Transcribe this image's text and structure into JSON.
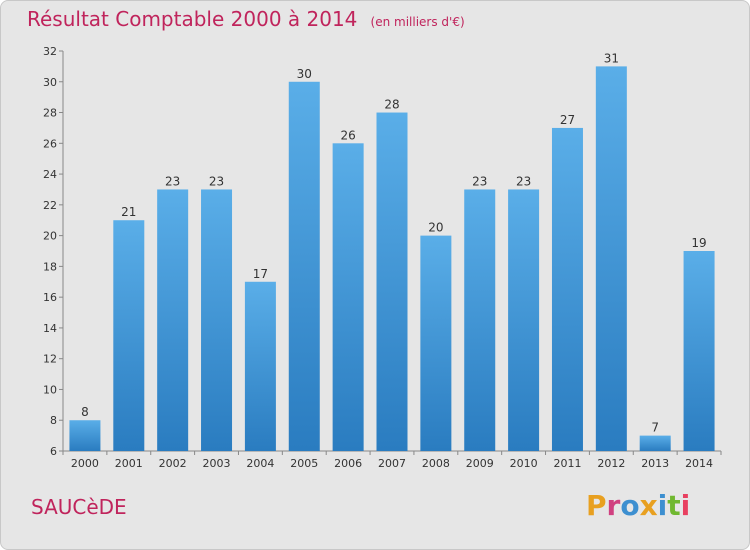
{
  "header": {
    "title": "Résultat Comptable 2000 à 2014",
    "subtitle": "(en milliers d'€)"
  },
  "footer": {
    "commune": "SAUCèDE",
    "logo_text": "Proxiti"
  },
  "colors": {
    "accent": "#c0245c",
    "bar_top": "#5aaee8",
    "bar_bottom": "#2a7cc0",
    "background": "#e6e6e6",
    "logo": [
      "#e8a020",
      "#d04080",
      "#3d8fd0",
      "#e8a020",
      "#3d8fd0",
      "#70b830",
      "#e84060"
    ]
  },
  "chart_data": {
    "type": "bar",
    "title": "Résultat Comptable 2000 à 2014",
    "subtitle": "(en milliers d'€)",
    "xlabel": "",
    "ylabel": "",
    "categories": [
      "2000",
      "2001",
      "2002",
      "2003",
      "2004",
      "2005",
      "2006",
      "2007",
      "2008",
      "2009",
      "2010",
      "2011",
      "2012",
      "2013",
      "2014"
    ],
    "values": [
      8,
      21,
      23,
      23,
      17,
      30,
      26,
      28,
      20,
      23,
      23,
      27,
      31,
      7,
      19
    ],
    "ylim": [
      6,
      32
    ],
    "yticks": [
      6,
      8,
      10,
      12,
      14,
      16,
      18,
      20,
      22,
      24,
      26,
      28,
      30,
      32
    ],
    "grid": false,
    "legend": "none"
  }
}
